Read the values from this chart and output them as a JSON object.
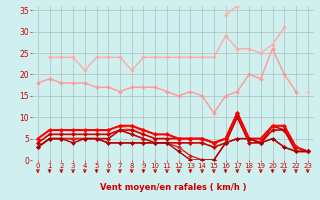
{
  "background_color": "#cff0ee",
  "grid_color": "#b0c8c8",
  "xlabel": "Vent moyen/en rafales ( km/h )",
  "x_ticks": [
    0,
    1,
    2,
    3,
    4,
    5,
    6,
    7,
    8,
    9,
    10,
    11,
    12,
    13,
    14,
    15,
    16,
    17,
    18,
    19,
    20,
    21,
    22,
    23
  ],
  "ylim": [
    0,
    36
  ],
  "yticks": [
    0,
    5,
    10,
    15,
    20,
    25,
    30,
    35
  ],
  "series": [
    {
      "name": "rafales_max_light",
      "color": "#ffb0b0",
      "lw": 1.0,
      "marker": "D",
      "ms": 2.0,
      "y": [
        null,
        null,
        null,
        null,
        null,
        null,
        null,
        null,
        null,
        null,
        null,
        null,
        null,
        null,
        null,
        null,
        34,
        36,
        null,
        null,
        null,
        null,
        null,
        null
      ]
    },
    {
      "name": "rafales_light2",
      "color": "#ffaaaa",
      "lw": 1.0,
      "marker": "D",
      "ms": 2.0,
      "y": [
        null,
        24,
        24,
        24,
        21,
        24,
        24,
        24,
        21,
        24,
        24,
        24,
        24,
        24,
        24,
        24,
        29,
        26,
        26,
        25,
        27,
        31,
        null,
        null
      ]
    },
    {
      "name": "vent_moyen_light",
      "color": "#ff9999",
      "lw": 1.0,
      "marker": "D",
      "ms": 2.0,
      "y": [
        18,
        19,
        18,
        18,
        18,
        17,
        17,
        16,
        17,
        17,
        17,
        16,
        15,
        16,
        15,
        11,
        15,
        16,
        20,
        19,
        26,
        20,
        16,
        null
      ]
    },
    {
      "name": "vent_moyen_light2",
      "color": "#ffbbbb",
      "lw": 1.0,
      "marker": "D",
      "ms": 2.0,
      "y": [
        null,
        null,
        null,
        null,
        null,
        null,
        null,
        null,
        null,
        null,
        null,
        null,
        null,
        null,
        null,
        null,
        null,
        null,
        null,
        null,
        null,
        null,
        null,
        16
      ]
    },
    {
      "name": "line_lower_light",
      "color": "#ff9999",
      "lw": 1.0,
      "marker": "D",
      "ms": 2.0,
      "y": [
        null,
        null,
        null,
        null,
        null,
        null,
        null,
        8,
        7,
        7,
        null,
        null,
        null,
        null,
        null,
        null,
        null,
        null,
        null,
        null,
        null,
        null,
        null,
        null
      ]
    },
    {
      "name": "line_dark1",
      "color": "#cc0000",
      "lw": 1.2,
      "marker": "D",
      "ms": 2.2,
      "y": [
        4,
        6,
        6,
        6,
        6,
        6,
        6,
        7,
        7,
        6,
        5,
        5,
        5,
        5,
        5,
        4,
        5,
        11,
        5,
        4,
        8,
        7,
        3,
        2
      ]
    },
    {
      "name": "line_dark2",
      "color": "#ff0000",
      "lw": 1.5,
      "marker": "D",
      "ms": 2.2,
      "y": [
        5,
        7,
        7,
        7,
        7,
        7,
        7,
        8,
        8,
        7,
        6,
        6,
        5,
        5,
        5,
        4,
        5,
        11,
        5,
        5,
        8,
        8,
        3,
        2
      ]
    },
    {
      "name": "line_dark3",
      "color": "#cc0000",
      "lw": 1.2,
      "marker": "D",
      "ms": 2.2,
      "y": [
        3,
        5,
        5,
        5,
        5,
        5,
        5,
        7,
        6,
        5,
        4,
        4,
        4,
        4,
        4,
        3,
        4,
        10,
        4,
        4,
        7,
        7,
        2,
        2
      ]
    },
    {
      "name": "line_dark4",
      "color": "#dd2222",
      "lw": 1.0,
      "marker": "D",
      "ms": 2.0,
      "y": [
        3,
        5,
        5,
        5,
        5,
        5,
        4,
        4,
        4,
        4,
        4,
        4,
        3,
        1,
        0,
        0,
        4,
        5,
        5,
        4,
        5,
        3,
        2,
        2
      ]
    },
    {
      "name": "line_dark5",
      "color": "#aa0000",
      "lw": 1.0,
      "marker": "D",
      "ms": 2.0,
      "y": [
        3,
        5,
        5,
        4,
        5,
        5,
        4,
        4,
        4,
        4,
        4,
        4,
        2,
        0,
        0,
        0,
        4,
        5,
        5,
        4,
        5,
        3,
        2,
        2
      ]
    }
  ],
  "arrow_colors": [
    "#cc0000"
  ],
  "title_color": "#cc0000",
  "tick_color": "#cc0000",
  "label_color": "#cc0000"
}
